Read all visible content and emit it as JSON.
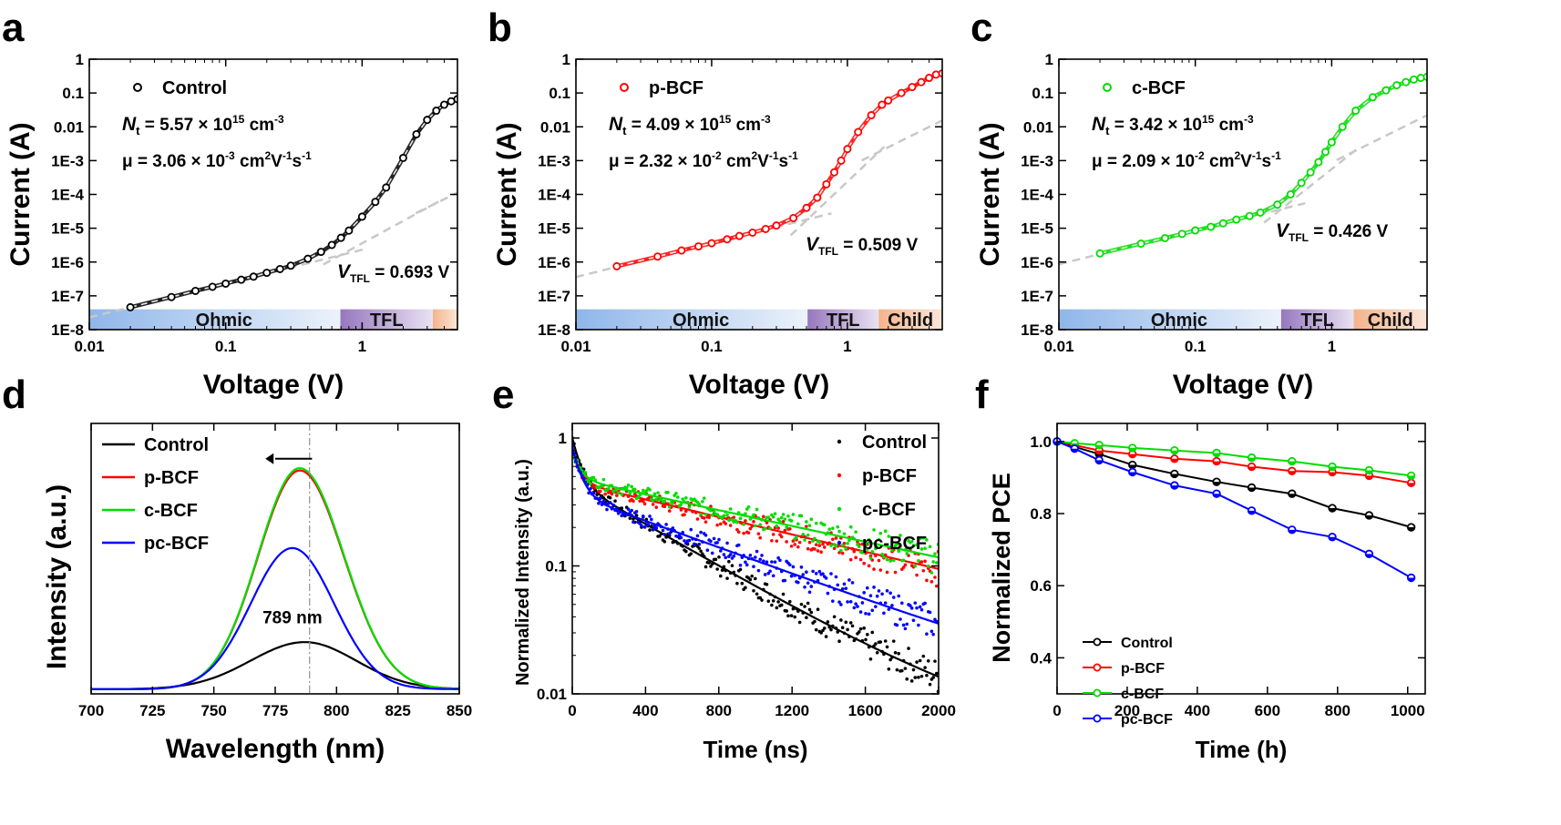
{
  "chart_data": [
    {
      "panel": "a",
      "type": "scatter",
      "xlabel": "Voltage (V)",
      "ylabel": "Current (A)",
      "xscale": "log",
      "yscale": "log",
      "xlim": [
        0.01,
        5
      ],
      "ylim": [
        1e-08,
        1
      ],
      "x_ticks": [
        "0.01",
        "0.1",
        "1"
      ],
      "y_ticks": [
        "1E-8",
        "1E-7",
        "1E-6",
        "1E-5",
        "1E-4",
        "1E-3",
        "0.01",
        "0.1",
        "1"
      ],
      "legend": "Control",
      "color": "#000000",
      "nt_text": "N",
      "nt_sub": "t",
      "nt_value": " = 5.57 × 10",
      "nt_exp": "15",
      "nt_unit": " cm",
      "nt_unit_exp": "-3",
      "mu_value": "μ = 3.06 × 10",
      "mu_exp": "-3",
      "mu_unit": " cm",
      "mu_unit_exp1": "2",
      "mu_unit_mid1": "V",
      "mu_unit_exp2": "-1",
      "mu_unit_mid2": "s",
      "mu_unit_exp3": "-1",
      "vtfl_label": "V",
      "vtfl_sub": "TFL",
      "vtfl_value": " = 0.693 V",
      "vtfl": 0.693,
      "vchild": 3.3,
      "regions": [
        "Ohmic",
        "TFL",
        ""
      ],
      "ohmic_a": 2.3e-06,
      "slope_mid": 2.2,
      "x": [
        0.02,
        0.04,
        0.06,
        0.08,
        0.1,
        0.13,
        0.16,
        0.2,
        0.25,
        0.3,
        0.4,
        0.5,
        0.6,
        0.7,
        0.8,
        1.0,
        1.25,
        1.5,
        2.0,
        2.5,
        3.0,
        3.5,
        4.0,
        4.5,
        5.0
      ],
      "y": [
        4.6e-08,
        9.2e-08,
        1.4e-07,
        1.85e-07,
        2.3e-07,
        3e-07,
        3.7e-07,
        4.8e-07,
        6.2e-07,
        7.8e-07,
        1.25e-06,
        2e-06,
        3.2e-06,
        5.2e-06,
        8.5e-06,
        2.2e-05,
        6e-05,
        0.00016,
        0.0012,
        0.006,
        0.016,
        0.03,
        0.045,
        0.057,
        0.066
      ]
    },
    {
      "panel": "b",
      "type": "scatter",
      "xlabel": "Voltage (V)",
      "ylabel": "Current (A)",
      "xscale": "log",
      "yscale": "log",
      "xlim": [
        0.01,
        5
      ],
      "ylim": [
        1e-08,
        1
      ],
      "x_ticks": [
        "0.01",
        "0.1",
        "1"
      ],
      "y_ticks": [
        "1E-8",
        "1E-7",
        "1E-6",
        "1E-5",
        "1E-4",
        "1E-3",
        "0.01",
        "0.1",
        "1"
      ],
      "legend": "p-BCF",
      "color": "#ff0000",
      "nt_text": "N",
      "nt_sub": "t",
      "nt_value": " = 4.09 × 10",
      "nt_exp": "15",
      "nt_unit": " cm",
      "nt_unit_exp": "-3",
      "mu_value": "μ = 2.32 × 10",
      "mu_exp": "-2",
      "mu_unit": " cm",
      "mu_unit_exp1": "2",
      "mu_unit_mid1": "V",
      "mu_unit_exp2": "-1",
      "mu_unit_mid2": "s",
      "mu_unit_exp3": "-1",
      "vtfl_label": "V",
      "vtfl_sub": "TFL",
      "vtfl_value": " = 0.509 V",
      "vtfl": 0.509,
      "vchild": 1.7,
      "regions": [
        "Ohmic",
        "TFL",
        "Child"
      ],
      "ohmic_a": 3.6e-05,
      "slope_mid": 3.8,
      "x": [
        0.02,
        0.04,
        0.06,
        0.08,
        0.1,
        0.13,
        0.16,
        0.2,
        0.25,
        0.3,
        0.4,
        0.5,
        0.6,
        0.7,
        0.8,
        0.9,
        1.0,
        1.2,
        1.5,
        1.8,
        2.0,
        2.5,
        3.0,
        3.5,
        4.0,
        4.5,
        5.0
      ],
      "y": [
        7.5e-07,
        1.45e-06,
        2.2e-06,
        2.9e-06,
        3.6e-06,
        4.7e-06,
        5.9e-06,
        7.4e-06,
        9.5e-06,
        1.2e-05,
        2e-05,
        4e-05,
        8e-05,
        0.0002,
        0.00045,
        0.001,
        0.0022,
        0.007,
        0.022,
        0.045,
        0.06,
        0.1,
        0.15,
        0.21,
        0.28,
        0.35,
        0.38
      ]
    },
    {
      "panel": "c",
      "type": "scatter",
      "xlabel": "Voltage (V)",
      "ylabel": "Current (A)",
      "xscale": "log",
      "yscale": "log",
      "xlim": [
        0.01,
        5
      ],
      "ylim": [
        1e-08,
        1
      ],
      "x_ticks": [
        "0.01",
        "0.1",
        "1"
      ],
      "y_ticks": [
        "1E-8",
        "1E-7",
        "1E-6",
        "1E-5",
        "1E-4",
        "1E-3",
        "0.01",
        "0.1",
        "1"
      ],
      "legend": "c-BCF",
      "color": "#00dd00",
      "nt_text": "N",
      "nt_sub": "t",
      "nt_value": " = 3.42 × 10",
      "nt_exp": "15",
      "nt_unit": " cm",
      "nt_unit_exp": "-3",
      "mu_value": "μ = 2.09 × 10",
      "mu_exp": "-2",
      "mu_unit": " cm",
      "mu_unit_exp1": "2",
      "mu_unit_mid1": "V",
      "mu_unit_exp2": "-1",
      "mu_unit_mid2": "s",
      "mu_unit_exp3": "-1",
      "vtfl_label": "V",
      "vtfl_sub": "TFL",
      "vtfl_value": " = 0.426 V",
      "vtfl": 0.426,
      "vchild": 1.45,
      "regions": [
        "Ohmic",
        "TFL",
        "Child"
      ],
      "ohmic_a": 8.6e-05,
      "slope_mid": 3.2,
      "x": [
        0.02,
        0.04,
        0.06,
        0.08,
        0.1,
        0.13,
        0.16,
        0.2,
        0.25,
        0.3,
        0.4,
        0.5,
        0.6,
        0.7,
        0.8,
        0.9,
        1.0,
        1.2,
        1.5,
        2.0,
        2.5,
        3.0,
        3.5,
        4.0,
        4.5,
        5.0
      ],
      "y": [
        1.8e-06,
        3.5e-06,
        5.1e-06,
        6.8e-06,
        8.6e-06,
        1.1e-05,
        1.4e-05,
        1.8e-05,
        2.3e-05,
        2.9e-05,
        5e-05,
        0.0001,
        0.00022,
        0.00045,
        0.0009,
        0.0018,
        0.0035,
        0.01,
        0.03,
        0.075,
        0.12,
        0.17,
        0.21,
        0.25,
        0.28,
        0.3
      ]
    },
    {
      "panel": "d",
      "type": "line",
      "xlabel": "Wavelength (nm)",
      "ylabel": "Intensity (a.u.)",
      "xlim": [
        700,
        850
      ],
      "ylim": [
        0,
        1.15
      ],
      "x_ticks": [
        "700",
        "725",
        "750",
        "775",
        "800",
        "825",
        "850"
      ],
      "peak_label": "789 nm",
      "peak_line": 789,
      "series": [
        {
          "name": "Control",
          "color": "#000000",
          "peak": 787,
          "amp": 0.2,
          "sigma_l": 22,
          "sigma_r": 21
        },
        {
          "name": "p-BCF",
          "color": "#ff0000",
          "peak": 785,
          "amp": 0.93,
          "sigma_l": 17,
          "sigma_r": 18
        },
        {
          "name": "c-BCF",
          "color": "#00dd00",
          "peak": 785,
          "amp": 0.94,
          "sigma_l": 17,
          "sigma_r": 18
        },
        {
          "name": "pc-BCF",
          "color": "#0000ff",
          "peak": 782,
          "amp": 0.6,
          "sigma_l": 17,
          "sigma_r": 17
        }
      ]
    },
    {
      "panel": "e",
      "type": "scatter",
      "xlabel": "Time (ns)",
      "ylabel": "Normalized Intensity (a.u.)",
      "yscale": "log",
      "xlim": [
        0,
        2000
      ],
      "ylim": [
        0.01,
        1.3
      ],
      "x_ticks": [
        "0",
        "400",
        "800",
        "1200",
        "1600",
        "2000"
      ],
      "y_ticks": [
        "0.01",
        "0.1",
        "1"
      ],
      "series": [
        {
          "name": "Control",
          "color": "#000000",
          "a1": 0.55,
          "t1": 45,
          "a2": 0.45,
          "t2": 520
        },
        {
          "name": "p-BCF",
          "color": "#ff0000",
          "a1": 0.35,
          "t1": 40,
          "a2": 0.45,
          "t2": 1250
        },
        {
          "name": "c-BCF",
          "color": "#00dd00",
          "a1": 0.3,
          "t1": 40,
          "a2": 0.48,
          "t2": 1380
        },
        {
          "name": "pc-BCF",
          "color": "#0000ff",
          "a1": 0.5,
          "t1": 45,
          "a2": 0.36,
          "t2": 820
        }
      ]
    },
    {
      "panel": "f",
      "type": "line",
      "xlabel": "Time (h)",
      "ylabel": "Normalized PCE",
      "xlim": [
        0,
        1050
      ],
      "ylim": [
        0.3,
        1.05
      ],
      "x_ticks": [
        "0",
        "200",
        "400",
        "600",
        "800",
        "1000"
      ],
      "y_ticks": [
        "0.4",
        "0.6",
        "0.8",
        "1.0"
      ],
      "x": [
        0,
        50,
        120,
        215,
        335,
        455,
        555,
        670,
        785,
        890,
        1010
      ],
      "series": [
        {
          "name": "Control",
          "color": "#000000",
          "values": [
            1.0,
            0.985,
            0.965,
            0.935,
            0.91,
            0.888,
            0.872,
            0.855,
            0.815,
            0.795,
            0.762
          ]
        },
        {
          "name": "p-BCF",
          "color": "#ff0000",
          "values": [
            1.0,
            0.99,
            0.975,
            0.965,
            0.952,
            0.945,
            0.93,
            0.918,
            0.915,
            0.905,
            0.885
          ]
        },
        {
          "name": "c-BCF",
          "color": "#00dd00",
          "values": [
            1.0,
            0.995,
            0.99,
            0.982,
            0.975,
            0.968,
            0.955,
            0.945,
            0.93,
            0.92,
            0.905
          ]
        },
        {
          "name": "pc-BCF",
          "color": "#0000ff",
          "values": [
            1.0,
            0.98,
            0.948,
            0.915,
            0.878,
            0.855,
            0.808,
            0.755,
            0.735,
            0.688,
            0.622
          ]
        }
      ]
    }
  ]
}
